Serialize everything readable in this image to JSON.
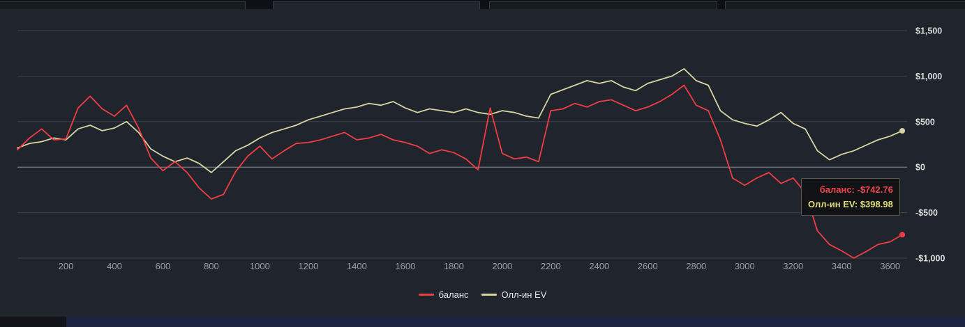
{
  "colors": {
    "balance": "#ef3e42",
    "ev": "#d8d5a0",
    "tooltip_ev": "#e0dd7a",
    "panel_bg": "#20242d",
    "page_bg": "#12141a",
    "grid": "#3d424d",
    "zero_line": "#8a8f99",
    "x_label": "#99a0aa",
    "y_label": "#dcdcdc",
    "bottom_bar": "#1b2340"
  },
  "tooltip": {
    "balance_text": "баланс: -$742.76",
    "ev_text": "Олл-ин EV: $398.98"
  },
  "chart_data": {
    "type": "line",
    "title": "",
    "xlabel": "",
    "ylabel": "",
    "grid": "horizontal",
    "legend_position": "bottom",
    "xlim": [
      0,
      3670
    ],
    "ylim": [
      -1000,
      1500
    ],
    "x_ticks": [
      200,
      400,
      600,
      800,
      1000,
      1200,
      1400,
      1600,
      1800,
      2000,
      2200,
      2400,
      2600,
      2800,
      3000,
      3200,
      3400,
      3600
    ],
    "y_ticks": [
      {
        "value": 1500,
        "label": "$1,500"
      },
      {
        "value": 1000,
        "label": "$1,000"
      },
      {
        "value": 500,
        "label": "$500"
      },
      {
        "value": 0,
        "label": "$0"
      },
      {
        "value": -500,
        "label": "-$500"
      },
      {
        "value": -1000,
        "label": "-$1,000"
      }
    ],
    "x": [
      0,
      50,
      100,
      150,
      200,
      250,
      300,
      350,
      400,
      450,
      500,
      550,
      600,
      650,
      700,
      750,
      800,
      850,
      900,
      950,
      1000,
      1050,
      1100,
      1150,
      1200,
      1250,
      1300,
      1350,
      1400,
      1450,
      1500,
      1550,
      1600,
      1650,
      1700,
      1750,
      1800,
      1850,
      1900,
      1950,
      2000,
      2050,
      2100,
      2150,
      2200,
      2250,
      2300,
      2350,
      2400,
      2450,
      2500,
      2550,
      2600,
      2650,
      2700,
      2750,
      2800,
      2850,
      2900,
      2950,
      3000,
      3050,
      3100,
      3150,
      3200,
      3250,
      3300,
      3350,
      3400,
      3450,
      3500,
      3550,
      3600,
      3650
    ],
    "series": [
      {
        "name": "баланс",
        "color": "#ef3e42",
        "final_value": -742.76,
        "values": [
          190,
          320,
          420,
          300,
          310,
          650,
          780,
          640,
          560,
          680,
          430,
          100,
          -40,
          60,
          -60,
          -230,
          -350,
          -300,
          -50,
          120,
          230,
          90,
          180,
          260,
          270,
          300,
          340,
          380,
          300,
          320,
          360,
          300,
          270,
          230,
          150,
          190,
          160,
          90,
          -30,
          650,
          150,
          90,
          110,
          60,
          620,
          640,
          700,
          660,
          720,
          740,
          680,
          620,
          660,
          720,
          800,
          900,
          680,
          620,
          300,
          -120,
          -200,
          -120,
          -60,
          -180,
          -120,
          -280,
          -700,
          -850,
          -920,
          -1000,
          -930,
          -850,
          -820,
          -742.76
        ]
      },
      {
        "name": "Олл-ин EV",
        "color": "#d8d5a0",
        "final_value": 398.98,
        "values": [
          210,
          260,
          280,
          320,
          300,
          420,
          460,
          400,
          430,
          500,
          380,
          200,
          120,
          60,
          100,
          40,
          -60,
          60,
          180,
          240,
          320,
          380,
          420,
          460,
          520,
          560,
          600,
          640,
          660,
          700,
          680,
          720,
          650,
          600,
          640,
          620,
          600,
          640,
          600,
          580,
          620,
          600,
          560,
          540,
          800,
          850,
          900,
          950,
          920,
          950,
          880,
          840,
          920,
          960,
          1000,
          1080,
          950,
          900,
          620,
          520,
          480,
          450,
          520,
          600,
          480,
          420,
          180,
          80,
          140,
          180,
          240,
          300,
          340,
          398.98
        ]
      }
    ]
  }
}
